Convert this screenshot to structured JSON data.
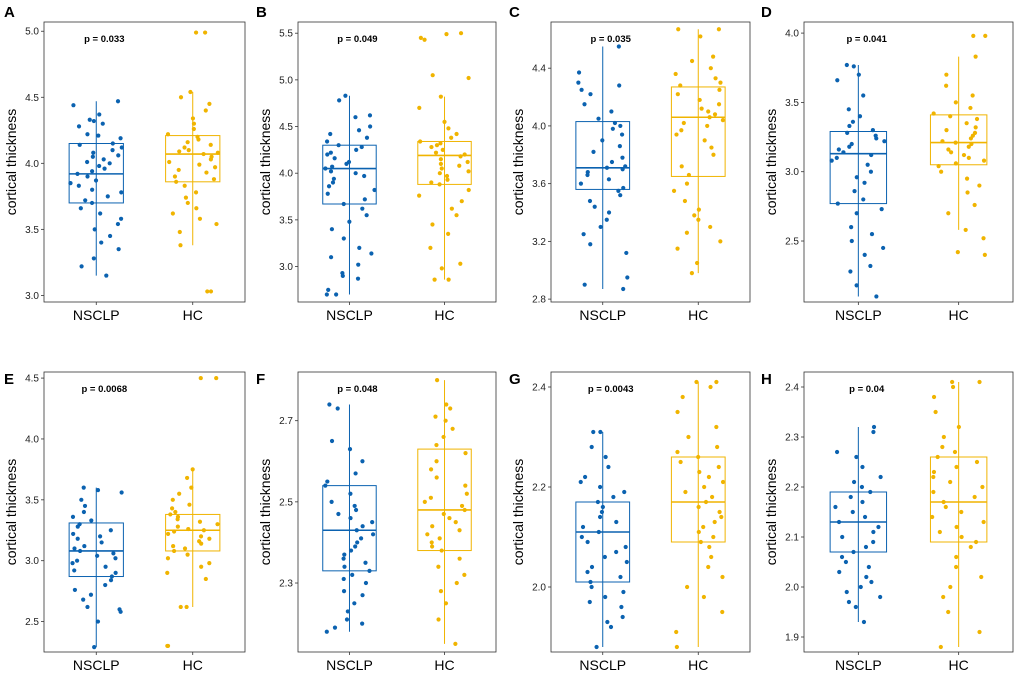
{
  "colors": {
    "NSCLP": "#0b62b0",
    "HC": "#f0b400",
    "frame": "#333333"
  },
  "chart_data": [
    {
      "type": "box",
      "panel": "A",
      "title": "",
      "pvalue": "p = 0.033",
      "categories": [
        "NSCLP",
        "HC"
      ],
      "xlabel": "",
      "ylabel": "cortical thickness",
      "ylim": [
        2.95,
        5.07
      ],
      "yticks": [
        3.0,
        3.5,
        4.0,
        4.5,
        5.0
      ],
      "tick_decimals": 1,
      "boxes": [
        {
          "name": "NSCLP",
          "q1": 3.7,
          "median": 3.92,
          "q3": 4.15,
          "whisker_low": 3.15,
          "whisker_high": 4.47,
          "points": [
            4.47,
            4.44,
            4.37,
            4.33,
            4.32,
            4.3,
            4.28,
            4.22,
            4.21,
            4.19,
            4.15,
            4.14,
            4.12,
            4.1,
            4.08,
            4.06,
            4.05,
            4.03,
            4.01,
            4.0,
            3.98,
            3.96,
            3.94,
            3.92,
            3.9,
            3.87,
            3.85,
            3.83,
            3.8,
            3.78,
            3.75,
            3.72,
            3.7,
            3.66,
            3.62,
            3.58,
            3.54,
            3.5,
            3.45,
            3.4,
            3.35,
            3.28,
            3.22,
            3.15
          ]
        },
        {
          "name": "HC",
          "q1": 3.86,
          "median": 4.07,
          "q3": 4.21,
          "whisker_low": 3.38,
          "whisker_high": 4.54,
          "points": [
            4.99,
            4.99,
            4.54,
            4.5,
            4.45,
            4.4,
            4.34,
            4.3,
            4.26,
            4.22,
            4.2,
            4.18,
            4.16,
            4.14,
            4.12,
            4.1,
            4.09,
            4.08,
            4.07,
            4.05,
            4.03,
            4.01,
            3.99,
            3.97,
            3.95,
            3.93,
            3.9,
            3.88,
            3.86,
            3.83,
            3.78,
            3.74,
            3.7,
            3.66,
            3.62,
            3.58,
            3.54,
            3.48,
            3.38,
            3.03,
            3.03
          ]
        }
      ]
    },
    {
      "type": "box",
      "panel": "B",
      "title": "",
      "pvalue": "p = 0.049",
      "categories": [
        "NSCLP",
        "HC"
      ],
      "xlabel": "",
      "ylabel": "cortical thickness",
      "ylim": [
        2.62,
        5.62
      ],
      "yticks": [
        3.0,
        3.5,
        4.0,
        4.5,
        5.0,
        5.5
      ],
      "tick_decimals": 1,
      "boxes": [
        {
          "name": "NSCLP",
          "q1": 3.67,
          "median": 4.05,
          "q3": 4.3,
          "whisker_low": 2.7,
          "whisker_high": 4.83,
          "points": [
            4.83,
            4.78,
            4.62,
            4.6,
            4.5,
            4.46,
            4.42,
            4.38,
            4.34,
            4.3,
            4.28,
            4.25,
            4.22,
            4.2,
            4.16,
            4.12,
            4.1,
            4.07,
            4.05,
            4.02,
            4.0,
            3.97,
            3.94,
            3.9,
            3.86,
            3.82,
            3.78,
            3.72,
            3.67,
            3.62,
            3.55,
            3.48,
            3.4,
            3.3,
            3.2,
            3.14,
            3.1,
            3.02,
            2.93,
            2.9,
            2.87,
            2.75,
            2.7,
            2.7
          ]
        },
        {
          "name": "HC",
          "q1": 3.88,
          "median": 4.19,
          "q3": 4.34,
          "whisker_low": 2.86,
          "whisker_high": 4.82,
          "points": [
            5.5,
            5.49,
            5.45,
            5.43,
            5.05,
            5.02,
            4.82,
            4.7,
            4.55,
            4.48,
            4.42,
            4.38,
            4.34,
            4.32,
            4.3,
            4.28,
            4.25,
            4.22,
            4.2,
            4.18,
            4.15,
            4.12,
            4.1,
            4.08,
            4.05,
            4.02,
            4.0,
            3.97,
            3.93,
            3.9,
            3.88,
            3.82,
            3.76,
            3.7,
            3.62,
            3.55,
            3.45,
            3.35,
            3.2,
            3.03,
            2.98,
            2.86,
            2.86
          ]
        }
      ]
    },
    {
      "type": "box",
      "panel": "C",
      "title": "",
      "pvalue": "p = 0.035",
      "categories": [
        "NSCLP",
        "HC"
      ],
      "xlabel": "",
      "ylabel": "cortical thickness",
      "ylim": [
        2.78,
        4.72
      ],
      "yticks": [
        2.8,
        3.2,
        3.6,
        4.0,
        4.4
      ],
      "tick_decimals": 1,
      "boxes": [
        {
          "name": "NSCLP",
          "q1": 3.56,
          "median": 3.71,
          "q3": 4.03,
          "whisker_low": 2.87,
          "whisker_high": 4.55,
          "points": [
            4.55,
            4.37,
            4.3,
            4.28,
            4.25,
            4.22,
            4.15,
            4.1,
            4.05,
            4.02,
            4.0,
            3.98,
            3.94,
            3.9,
            3.86,
            3.82,
            3.78,
            3.75,
            3.72,
            3.71,
            3.7,
            3.68,
            3.66,
            3.63,
            3.6,
            3.57,
            3.55,
            3.52,
            3.48,
            3.44,
            3.4,
            3.35,
            3.3,
            3.25,
            3.18,
            3.12,
            2.95,
            2.9,
            2.87
          ]
        },
        {
          "name": "HC",
          "q1": 3.65,
          "median": 4.06,
          "q3": 4.27,
          "whisker_low": 2.98,
          "whisker_high": 4.67,
          "points": [
            4.67,
            4.67,
            4.62,
            4.48,
            4.45,
            4.4,
            4.36,
            4.33,
            4.3,
            4.28,
            4.25,
            4.22,
            4.18,
            4.15,
            4.12,
            4.1,
            4.08,
            4.06,
            4.04,
            4.02,
            4.0,
            3.97,
            3.94,
            3.9,
            3.85,
            3.8,
            3.72,
            3.66,
            3.6,
            3.55,
            3.48,
            3.42,
            3.38,
            3.35,
            3.3,
            3.26,
            3.2,
            3.15,
            3.05,
            2.98
          ]
        }
      ]
    },
    {
      "type": "box",
      "panel": "D",
      "title": "",
      "pvalue": "p = 0.041",
      "categories": [
        "NSCLP",
        "HC"
      ],
      "xlabel": "",
      "ylabel": "cortical thickness",
      "ylim": [
        2.06,
        4.08
      ],
      "yticks": [
        2.5,
        3.0,
        3.5,
        4.0
      ],
      "tick_decimals": 1,
      "boxes": [
        {
          "name": "NSCLP",
          "q1": 2.77,
          "median": 3.13,
          "q3": 3.29,
          "whisker_low": 2.1,
          "whisker_high": 3.77,
          "points": [
            3.77,
            3.76,
            3.7,
            3.66,
            3.55,
            3.45,
            3.4,
            3.36,
            3.33,
            3.3,
            3.28,
            3.26,
            3.24,
            3.22,
            3.2,
            3.18,
            3.16,
            3.14,
            3.12,
            3.1,
            3.08,
            3.05,
            3.0,
            2.96,
            2.92,
            2.86,
            2.8,
            2.77,
            2.73,
            2.7,
            2.6,
            2.55,
            2.5,
            2.45,
            2.4,
            2.32,
            2.28,
            2.18,
            2.1
          ]
        },
        {
          "name": "HC",
          "q1": 3.05,
          "median": 3.21,
          "q3": 3.41,
          "whisker_low": 2.58,
          "whisker_high": 3.83,
          "points": [
            3.98,
            3.98,
            3.83,
            3.7,
            3.62,
            3.55,
            3.5,
            3.46,
            3.42,
            3.4,
            3.38,
            3.35,
            3.32,
            3.3,
            3.28,
            3.26,
            3.24,
            3.22,
            3.21,
            3.2,
            3.18,
            3.16,
            3.14,
            3.12,
            3.1,
            3.08,
            3.06,
            3.04,
            3.0,
            2.95,
            2.9,
            2.85,
            2.76,
            2.7,
            2.58,
            2.52,
            2.42,
            2.4
          ]
        }
      ]
    },
    {
      "type": "box",
      "panel": "E",
      "title": "",
      "pvalue": "p = 0.0068",
      "categories": [
        "NSCLP",
        "HC"
      ],
      "xlabel": "",
      "ylabel": "cortical thickness",
      "ylim": [
        2.25,
        4.55
      ],
      "yticks": [
        2.5,
        3.0,
        3.5,
        4.0,
        4.5
      ],
      "tick_decimals": 1,
      "boxes": [
        {
          "name": "NSCLP",
          "q1": 2.87,
          "median": 3.08,
          "q3": 3.31,
          "whisker_low": 2.29,
          "whisker_high": 3.6,
          "points": [
            3.6,
            3.58,
            3.56,
            3.5,
            3.45,
            3.4,
            3.36,
            3.33,
            3.3,
            3.28,
            3.25,
            3.22,
            3.2,
            3.18,
            3.15,
            3.12,
            3.1,
            3.08,
            3.06,
            3.04,
            3.02,
            3.0,
            2.98,
            2.95,
            2.92,
            2.9,
            2.87,
            2.84,
            2.8,
            2.76,
            2.72,
            2.68,
            2.62,
            2.6,
            2.58,
            2.5,
            2.29
          ]
        },
        {
          "name": "HC",
          "q1": 3.08,
          "median": 3.25,
          "q3": 3.38,
          "whisker_low": 2.62,
          "whisker_high": 3.75,
          "points": [
            4.5,
            4.5,
            3.75,
            3.68,
            3.6,
            3.55,
            3.5,
            3.46,
            3.43,
            3.4,
            3.38,
            3.36,
            3.34,
            3.32,
            3.3,
            3.28,
            3.26,
            3.25,
            3.24,
            3.22,
            3.2,
            3.18,
            3.16,
            3.14,
            3.12,
            3.1,
            3.08,
            3.05,
            3.02,
            2.98,
            2.95,
            2.9,
            2.85,
            2.62,
            2.62,
            2.3,
            2.3
          ]
        }
      ]
    },
    {
      "type": "box",
      "panel": "F",
      "title": "",
      "pvalue": "p = 0.048",
      "categories": [
        "NSCLP",
        "HC"
      ],
      "xlabel": "",
      "ylabel": "cortical thickness",
      "ylim": [
        2.13,
        2.82
      ],
      "yticks": [
        2.3,
        2.5,
        2.7
      ],
      "tick_decimals": 1,
      "boxes": [
        {
          "name": "NSCLP",
          "q1": 2.33,
          "median": 2.43,
          "q3": 2.54,
          "whisker_low": 2.18,
          "whisker_high": 2.74,
          "points": [
            2.74,
            2.73,
            2.65,
            2.63,
            2.6,
            2.57,
            2.55,
            2.54,
            2.52,
            2.5,
            2.49,
            2.48,
            2.47,
            2.46,
            2.45,
            2.44,
            2.43,
            2.42,
            2.41,
            2.4,
            2.39,
            2.38,
            2.37,
            2.36,
            2.35,
            2.34,
            2.33,
            2.32,
            2.31,
            2.3,
            2.28,
            2.27,
            2.25,
            2.23,
            2.21,
            2.2,
            2.19,
            2.18
          ]
        },
        {
          "name": "HC",
          "q1": 2.38,
          "median": 2.48,
          "q3": 2.63,
          "whisker_low": 2.15,
          "whisker_high": 2.8,
          "points": [
            2.8,
            2.74,
            2.73,
            2.71,
            2.7,
            2.68,
            2.66,
            2.64,
            2.62,
            2.6,
            2.58,
            2.56,
            2.54,
            2.52,
            2.51,
            2.5,
            2.49,
            2.48,
            2.47,
            2.46,
            2.45,
            2.44,
            2.43,
            2.42,
            2.41,
            2.4,
            2.39,
            2.38,
            2.36,
            2.34,
            2.32,
            2.3,
            2.28,
            2.25,
            2.21,
            2.15
          ]
        }
      ]
    },
    {
      "type": "box",
      "panel": "G",
      "title": "",
      "pvalue": "p = 0.0043",
      "categories": [
        "NSCLP",
        "HC"
      ],
      "xlabel": "",
      "ylabel": "cortical thickness",
      "ylim": [
        1.87,
        2.43
      ],
      "yticks": [
        2.0,
        2.2,
        2.4
      ],
      "tick_decimals": 1,
      "boxes": [
        {
          "name": "NSCLP",
          "q1": 2.01,
          "median": 2.11,
          "q3": 2.17,
          "whisker_low": 1.88,
          "whisker_high": 2.31,
          "points": [
            2.31,
            2.31,
            2.28,
            2.26,
            2.24,
            2.22,
            2.21,
            2.2,
            2.19,
            2.18,
            2.17,
            2.16,
            2.15,
            2.14,
            2.13,
            2.12,
            2.11,
            2.1,
            2.09,
            2.08,
            2.07,
            2.06,
            2.05,
            2.04,
            2.03,
            2.02,
            2.01,
            2.0,
            1.99,
            1.98,
            1.97,
            1.96,
            1.94,
            1.93,
            1.92,
            1.88
          ]
        },
        {
          "name": "HC",
          "q1": 2.09,
          "median": 2.17,
          "q3": 2.26,
          "whisker_low": 1.88,
          "whisker_high": 2.41,
          "points": [
            2.41,
            2.41,
            2.4,
            2.38,
            2.35,
            2.32,
            2.3,
            2.28,
            2.27,
            2.26,
            2.25,
            2.24,
            2.23,
            2.22,
            2.21,
            2.2,
            2.19,
            2.18,
            2.17,
            2.16,
            2.15,
            2.14,
            2.13,
            2.12,
            2.11,
            2.1,
            2.09,
            2.08,
            2.06,
            2.04,
            2.02,
            2.0,
            1.98,
            1.95,
            1.91,
            1.88
          ]
        }
      ]
    },
    {
      "type": "box",
      "panel": "H",
      "title": "",
      "pvalue": "p = 0.04",
      "categories": [
        "NSCLP",
        "HC"
      ],
      "xlabel": "",
      "ylabel": "cortical thickness",
      "ylim": [
        1.87,
        2.43
      ],
      "yticks": [
        1.9,
        2.0,
        2.1,
        2.2,
        2.3,
        2.4
      ],
      "tick_decimals": 1,
      "boxes": [
        {
          "name": "NSCLP",
          "q1": 2.07,
          "median": 2.13,
          "q3": 2.19,
          "whisker_low": 1.93,
          "whisker_high": 2.32,
          "points": [
            2.32,
            2.31,
            2.27,
            2.26,
            2.24,
            2.22,
            2.21,
            2.2,
            2.19,
            2.18,
            2.17,
            2.16,
            2.15,
            2.14,
            2.13,
            2.12,
            2.11,
            2.1,
            2.09,
            2.08,
            2.07,
            2.06,
            2.05,
            2.04,
            2.03,
            2.02,
            2.01,
            2.0,
            1.99,
            1.98,
            1.97,
            1.96,
            1.93
          ]
        },
        {
          "name": "HC",
          "q1": 2.09,
          "median": 2.17,
          "q3": 2.26,
          "whisker_low": 1.88,
          "whisker_high": 2.41,
          "points": [
            2.41,
            2.41,
            2.4,
            2.38,
            2.35,
            2.32,
            2.3,
            2.28,
            2.27,
            2.26,
            2.25,
            2.24,
            2.23,
            2.22,
            2.21,
            2.2,
            2.19,
            2.18,
            2.17,
            2.16,
            2.15,
            2.14,
            2.13,
            2.12,
            2.11,
            2.1,
            2.09,
            2.08,
            2.06,
            2.04,
            2.02,
            2.0,
            1.98,
            1.95,
            1.91,
            1.88
          ]
        }
      ]
    }
  ]
}
